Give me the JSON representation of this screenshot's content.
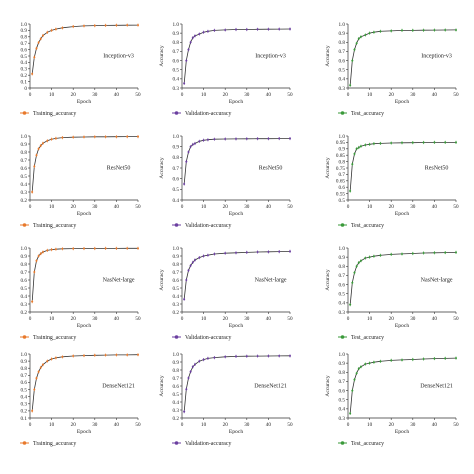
{
  "chart_data": [
    {
      "type": "line",
      "model": "Inception-v3",
      "kind": "Training_accuracy",
      "color": "#e8792b",
      "xlabel": "Epoch",
      "ylabel": "",
      "xlim": [
        0,
        50
      ],
      "ylim": [
        0,
        1.0
      ],
      "xticks": [
        0,
        10,
        20,
        30,
        40,
        50
      ],
      "yticks": [
        "0",
        "0.1",
        "0.2",
        "0.3",
        "0.4",
        "0.5",
        "0.6",
        "0.7",
        "0.8",
        "0.9",
        "1.0"
      ],
      "series": [
        {
          "name": "Training_accuracy",
          "x": [
            1,
            2,
            3,
            4,
            5,
            6,
            8,
            10,
            12,
            15,
            20,
            25,
            30,
            35,
            40,
            45,
            50
          ],
          "y": [
            0.22,
            0.48,
            0.62,
            0.71,
            0.77,
            0.82,
            0.87,
            0.9,
            0.92,
            0.94,
            0.96,
            0.97,
            0.975,
            0.978,
            0.98,
            0.982,
            0.983
          ]
        }
      ]
    },
    {
      "type": "line",
      "model": "Inception-v3",
      "kind": "Validation-accuracy",
      "color": "#6b3fa0",
      "xlabel": "Epoch",
      "ylabel": "Accuracy",
      "xlim": [
        0,
        50
      ],
      "ylim": [
        0.3,
        1.0
      ],
      "xticks": [
        0,
        10,
        20,
        30,
        40,
        50
      ],
      "yticks": [
        "0.3",
        "0.4",
        "0.5",
        "0.6",
        "0.7",
        "0.8",
        "0.9",
        "1.0"
      ],
      "series": [
        {
          "name": "Validation-accuracy",
          "x": [
            1,
            2,
            3,
            4,
            5,
            6,
            8,
            10,
            12,
            15,
            20,
            25,
            30,
            35,
            40,
            45,
            50
          ],
          "y": [
            0.35,
            0.6,
            0.72,
            0.8,
            0.85,
            0.87,
            0.89,
            0.91,
            0.92,
            0.93,
            0.935,
            0.94,
            0.94,
            0.942,
            0.943,
            0.944,
            0.945
          ]
        }
      ]
    },
    {
      "type": "line",
      "model": "Inception-v3",
      "kind": "Test_accuracy",
      "color": "#3a9a3a",
      "xlabel": "Epoch",
      "ylabel": "Accuracy",
      "xlim": [
        0,
        50
      ],
      "ylim": [
        0.3,
        1.0
      ],
      "xticks": [
        0,
        10,
        20,
        30,
        40,
        50
      ],
      "yticks": [
        "0.3",
        "0.4",
        "0.5",
        "0.6",
        "0.7",
        "0.8",
        "0.9",
        "1.0"
      ],
      "series": [
        {
          "name": "Test_accuracy",
          "x": [
            1,
            2,
            3,
            4,
            5,
            6,
            8,
            10,
            12,
            15,
            20,
            25,
            30,
            35,
            40,
            45,
            50
          ],
          "y": [
            0.33,
            0.6,
            0.72,
            0.79,
            0.84,
            0.86,
            0.88,
            0.9,
            0.91,
            0.92,
            0.925,
            0.93,
            0.93,
            0.932,
            0.933,
            0.934,
            0.935
          ]
        }
      ]
    },
    {
      "type": "line",
      "model": "ResNet50",
      "kind": "Training_accuracy",
      "color": "#e8792b",
      "xlabel": "Epoch",
      "ylabel": "",
      "xlim": [
        0,
        50
      ],
      "ylim": [
        0.2,
        1.0
      ],
      "xticks": [
        0,
        10,
        20,
        30,
        40,
        50
      ],
      "yticks": [
        "0.2",
        "0.3",
        "0.4",
        "0.5",
        "0.6",
        "0.7",
        "0.8",
        "0.9",
        "1.0"
      ],
      "series": [
        {
          "name": "Training_accuracy",
          "x": [
            1,
            2,
            3,
            4,
            5,
            6,
            8,
            10,
            12,
            15,
            20,
            25,
            30,
            35,
            40,
            45,
            50
          ],
          "y": [
            0.3,
            0.62,
            0.76,
            0.84,
            0.88,
            0.91,
            0.94,
            0.96,
            0.97,
            0.98,
            0.985,
            0.988,
            0.99,
            0.99,
            0.991,
            0.992,
            0.992
          ]
        }
      ]
    },
    {
      "type": "line",
      "model": "ResNet50",
      "kind": "Validation-accuracy",
      "color": "#6b3fa0",
      "xlabel": "Epoch",
      "ylabel": "Accuracy",
      "xlim": [
        0,
        50
      ],
      "ylim": [
        0.4,
        1.0
      ],
      "xticks": [
        0,
        10,
        20,
        30,
        40,
        50
      ],
      "yticks": [
        "0.4",
        "0.5",
        "0.6",
        "0.7",
        "0.8",
        "0.9",
        "1.0"
      ],
      "series": [
        {
          "name": "Validation-accuracy",
          "x": [
            1,
            2,
            3,
            4,
            5,
            6,
            8,
            10,
            12,
            15,
            20,
            25,
            30,
            35,
            40,
            45,
            50
          ],
          "y": [
            0.55,
            0.76,
            0.85,
            0.9,
            0.92,
            0.93,
            0.95,
            0.96,
            0.965,
            0.97,
            0.972,
            0.973,
            0.974,
            0.975,
            0.975,
            0.976,
            0.976
          ]
        }
      ]
    },
    {
      "type": "line",
      "model": "ResNet50",
      "kind": "Test_accuracy",
      "color": "#3a9a3a",
      "xlabel": "Epoch",
      "ylabel": "Accuracy",
      "xlim": [
        0,
        50
      ],
      "ylim": [
        0.5,
        1.0
      ],
      "xticks": [
        0,
        10,
        20,
        30,
        40,
        50
      ],
      "yticks": [
        "0.5",
        "0.55",
        "0.6",
        "0.65",
        "0.7",
        "0.75",
        "0.8",
        "0.85",
        "0.9",
        "0.95",
        "1.0"
      ],
      "series": [
        {
          "name": "Test_accuracy",
          "x": [
            1,
            2,
            3,
            4,
            5,
            6,
            8,
            10,
            12,
            15,
            20,
            25,
            30,
            35,
            40,
            45,
            50
          ],
          "y": [
            0.57,
            0.78,
            0.86,
            0.9,
            0.91,
            0.92,
            0.93,
            0.935,
            0.94,
            0.942,
            0.945,
            0.947,
            0.948,
            0.949,
            0.95,
            0.95,
            0.95
          ]
        }
      ]
    },
    {
      "type": "line",
      "model": "NasNet-large",
      "kind": "Training_accuracy",
      "color": "#e8792b",
      "xlabel": "Epoch",
      "ylabel": "",
      "xlim": [
        0,
        50
      ],
      "ylim": [
        0.2,
        1.0
      ],
      "xticks": [
        0,
        10,
        20,
        30,
        40,
        50
      ],
      "yticks": [
        "0.2",
        "0.3",
        "0.4",
        "0.5",
        "0.6",
        "0.7",
        "0.8",
        "0.9",
        "1.0"
      ],
      "series": [
        {
          "name": "Training_accuracy",
          "x": [
            1,
            2,
            3,
            4,
            5,
            6,
            8,
            10,
            12,
            15,
            20,
            25,
            30,
            35,
            40,
            45,
            50
          ],
          "y": [
            0.33,
            0.7,
            0.84,
            0.9,
            0.93,
            0.95,
            0.97,
            0.98,
            0.985,
            0.99,
            0.992,
            0.993,
            0.994,
            0.995,
            0.995,
            0.996,
            0.996
          ]
        }
      ]
    },
    {
      "type": "line",
      "model": "NasNet-large",
      "kind": "Validation-accuracy",
      "color": "#6b3fa0",
      "xlabel": "Epoch",
      "ylabel": "Accuracy",
      "xlim": [
        0,
        50
      ],
      "ylim": [
        0.2,
        1.0
      ],
      "xticks": [
        0,
        10,
        20,
        30,
        40,
        50
      ],
      "yticks": [
        "0.2",
        "0.3",
        "0.4",
        "0.5",
        "0.6",
        "0.7",
        "0.8",
        "0.9",
        "1.0"
      ],
      "series": [
        {
          "name": "Validation-accuracy",
          "x": [
            1,
            2,
            3,
            4,
            5,
            6,
            8,
            10,
            12,
            15,
            20,
            25,
            30,
            35,
            40,
            45,
            50
          ],
          "y": [
            0.36,
            0.6,
            0.72,
            0.78,
            0.82,
            0.85,
            0.88,
            0.9,
            0.91,
            0.925,
            0.935,
            0.94,
            0.945,
            0.95,
            0.952,
            0.955,
            0.958
          ]
        }
      ]
    },
    {
      "type": "line",
      "model": "NasNet-large",
      "kind": "Test_accuracy",
      "color": "#3a9a3a",
      "xlabel": "Epoch",
      "ylabel": "Accuracy",
      "xlim": [
        0,
        50
      ],
      "ylim": [
        0.3,
        1.0
      ],
      "xticks": [
        0,
        10,
        20,
        30,
        40,
        50
      ],
      "yticks": [
        "0.3",
        "0.4",
        "0.5",
        "0.6",
        "0.7",
        "0.8",
        "0.9",
        "1.0"
      ],
      "series": [
        {
          "name": "Test_accuracy",
          "x": [
            1,
            2,
            3,
            4,
            5,
            6,
            8,
            10,
            12,
            15,
            20,
            25,
            30,
            35,
            40,
            45,
            50
          ],
          "y": [
            0.38,
            0.62,
            0.73,
            0.8,
            0.84,
            0.86,
            0.89,
            0.9,
            0.91,
            0.92,
            0.93,
            0.935,
            0.94,
            0.945,
            0.948,
            0.95,
            0.952
          ]
        }
      ]
    },
    {
      "type": "line",
      "model": "DenseNet121",
      "kind": "Training_accuracy",
      "color": "#e8792b",
      "xlabel": "Epoch",
      "ylabel": "",
      "xlim": [
        0,
        50
      ],
      "ylim": [
        0.1,
        1.0
      ],
      "xticks": [
        0,
        10,
        20,
        30,
        40,
        50
      ],
      "yticks": [
        "0.1",
        "0.2",
        "0.3",
        "0.4",
        "0.5",
        "0.6",
        "0.7",
        "0.8",
        "0.9",
        "1.0"
      ],
      "series": [
        {
          "name": "Training_accuracy",
          "x": [
            1,
            2,
            3,
            4,
            5,
            6,
            8,
            10,
            12,
            15,
            20,
            25,
            30,
            35,
            40,
            45,
            50
          ],
          "y": [
            0.2,
            0.5,
            0.66,
            0.75,
            0.81,
            0.85,
            0.9,
            0.93,
            0.945,
            0.96,
            0.972,
            0.978,
            0.982,
            0.985,
            0.987,
            0.988,
            0.99
          ]
        }
      ]
    },
    {
      "type": "line",
      "model": "DenseNet121",
      "kind": "Validation-accuracy",
      "color": "#6b3fa0",
      "xlabel": "Epoch",
      "ylabel": "Accuracy",
      "xlim": [
        0,
        50
      ],
      "ylim": [
        0.2,
        1.0
      ],
      "xticks": [
        0,
        10,
        20,
        30,
        40,
        50
      ],
      "yticks": [
        "0.2",
        "0.3",
        "0.4",
        "0.5",
        "0.6",
        "0.7",
        "0.8",
        "0.9",
        "1.0"
      ],
      "series": [
        {
          "name": "Validation-accuracy",
          "x": [
            1,
            2,
            3,
            4,
            5,
            6,
            8,
            10,
            12,
            15,
            20,
            25,
            30,
            35,
            40,
            45,
            50
          ],
          "y": [
            0.28,
            0.56,
            0.7,
            0.78,
            0.84,
            0.87,
            0.91,
            0.93,
            0.945,
            0.955,
            0.965,
            0.97,
            0.972,
            0.974,
            0.975,
            0.976,
            0.977
          ]
        }
      ]
    },
    {
      "type": "line",
      "model": "DenseNet121",
      "kind": "Test_accuracy",
      "color": "#3a9a3a",
      "xlabel": "Epoch",
      "ylabel": "Accuracy",
      "xlim": [
        0,
        50
      ],
      "ylim": [
        0.3,
        1.0
      ],
      "xticks": [
        0,
        10,
        20,
        30,
        40,
        50
      ],
      "yticks": [
        "0.3",
        "0.4",
        "0.5",
        "0.6",
        "0.7",
        "0.8",
        "0.9",
        "1.0"
      ],
      "series": [
        {
          "name": "Test_accuracy",
          "x": [
            1,
            2,
            3,
            4,
            5,
            6,
            8,
            10,
            12,
            15,
            20,
            25,
            30,
            35,
            40,
            45,
            50
          ],
          "y": [
            0.35,
            0.6,
            0.72,
            0.79,
            0.84,
            0.86,
            0.89,
            0.9,
            0.91,
            0.92,
            0.93,
            0.935,
            0.94,
            0.945,
            0.95,
            0.952,
            0.955
          ]
        }
      ]
    }
  ]
}
